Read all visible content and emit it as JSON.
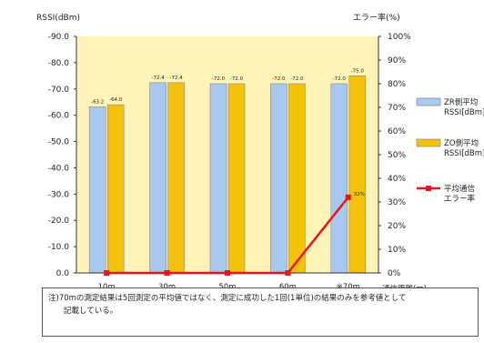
{
  "chart_data": {
    "type": "bar",
    "ylabel_left": "RSSI(dBm)",
    "ylabel_right": "エラー率(%)",
    "xlabel": "通信距離(m)",
    "categories": [
      "10m",
      "30m",
      "50m",
      "60m",
      "※70m"
    ],
    "y_left_ticks": [
      "-90.0",
      "-80.0",
      "-70.0",
      "-60.0",
      "-50.0",
      "-40.0",
      "-30.0",
      "-20.0",
      "-10.0",
      "0.0"
    ],
    "y_right_ticks": [
      "100%",
      "90%",
      "80%",
      "70%",
      "60%",
      "50%",
      "40%",
      "30%",
      "20%",
      "10%",
      "0%"
    ],
    "ylim_left": [
      -90,
      0
    ],
    "ylim_right": [
      0,
      100
    ],
    "grid": false,
    "legend_position": "right",
    "series": [
      {
        "name": "ZR側平均 RSSI[dBm]",
        "legend_lines": [
          "ZR側平均",
          "RSSI[dBm]"
        ],
        "axis": "left",
        "kind": "bar",
        "color": "#a9c8f0",
        "values": [
          -63.2,
          -72.4,
          -72.0,
          -72.0,
          -72.0
        ],
        "labels": [
          "-63.2",
          "-72.4",
          "-72.0",
          "-72.0",
          "-72.0"
        ]
      },
      {
        "name": "ZO側平均 RSSI[dBm]",
        "legend_lines": [
          "ZO側平均",
          "RSSI[dBm]"
        ],
        "axis": "left",
        "kind": "bar",
        "color": "#f4c20d",
        "values": [
          -64.0,
          -72.4,
          -72.0,
          -72.0,
          -75.0
        ],
        "labels": [
          "-64.0",
          "-72.4",
          "-72.0",
          "-72.0",
          "-75.0"
        ]
      },
      {
        "name": "平均通信 エラー率",
        "legend_lines": [
          "平均通信",
          "エラー率"
        ],
        "axis": "right",
        "kind": "line",
        "color": "#e8141b",
        "values": [
          0,
          0,
          0,
          0,
          32
        ],
        "labels": [
          "",
          "",
          "",
          "",
          "32%"
        ]
      }
    ],
    "plot_bg_color": "#fff4b8"
  },
  "note": {
    "line1": "注)70mの測定結果は5回測定の平均値ではなく、測定に成功した1回(1単位)の結果のみを参考値として",
    "line2": "　　記載している。"
  }
}
